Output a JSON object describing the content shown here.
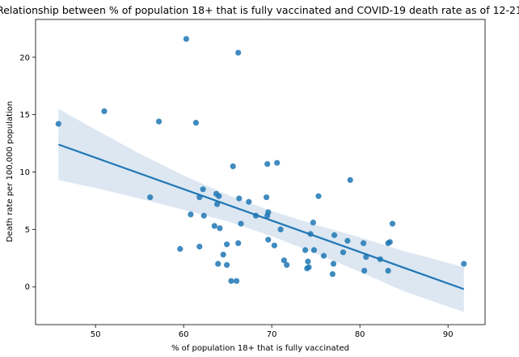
{
  "chart_data": {
    "type": "scatter",
    "title": "Relationship between % of population 18+ that is fully vaccinated and COVID-19 death rate as of 12-21",
    "xlabel": "% of population 18+ that is fully vaccinated",
    "ylabel": "Death rate per 100,000 population",
    "xlim": [
      43.2,
      94.2
    ],
    "ylim": [
      -3.3,
      23.3
    ],
    "xticks": [
      50,
      60,
      70,
      80,
      90
    ],
    "yticks": [
      0,
      5,
      10,
      15,
      20
    ],
    "grid": false,
    "points": [
      {
        "x": 45.8,
        "y": 14.2
      },
      {
        "x": 51.0,
        "y": 15.3
      },
      {
        "x": 57.2,
        "y": 14.4
      },
      {
        "x": 60.3,
        "y": 21.6
      },
      {
        "x": 61.4,
        "y": 14.3
      },
      {
        "x": 66.2,
        "y": 20.4
      },
      {
        "x": 56.2,
        "y": 7.8
      },
      {
        "x": 59.6,
        "y": 3.3
      },
      {
        "x": 60.8,
        "y": 6.3
      },
      {
        "x": 61.8,
        "y": 3.5
      },
      {
        "x": 61.8,
        "y": 7.8
      },
      {
        "x": 62.2,
        "y": 8.5
      },
      {
        "x": 62.3,
        "y": 6.2
      },
      {
        "x": 63.5,
        "y": 5.3
      },
      {
        "x": 63.7,
        "y": 8.1
      },
      {
        "x": 63.8,
        "y": 7.2
      },
      {
        "x": 63.9,
        "y": 2.0
      },
      {
        "x": 64.0,
        "y": 7.9
      },
      {
        "x": 64.1,
        "y": 5.1
      },
      {
        "x": 64.5,
        "y": 2.8
      },
      {
        "x": 64.9,
        "y": 3.7
      },
      {
        "x": 64.9,
        "y": 1.9
      },
      {
        "x": 65.4,
        "y": 0.5
      },
      {
        "x": 65.6,
        "y": 10.5
      },
      {
        "x": 66.0,
        "y": 0.5
      },
      {
        "x": 66.2,
        "y": 3.8
      },
      {
        "x": 66.3,
        "y": 7.7
      },
      {
        "x": 66.5,
        "y": 5.5
      },
      {
        "x": 67.4,
        "y": 7.4
      },
      {
        "x": 68.2,
        "y": 6.2
      },
      {
        "x": 69.4,
        "y": 7.8
      },
      {
        "x": 69.5,
        "y": 10.7
      },
      {
        "x": 69.5,
        "y": 6.2
      },
      {
        "x": 69.6,
        "y": 6.5
      },
      {
        "x": 69.6,
        "y": 4.1
      },
      {
        "x": 70.3,
        "y": 3.6
      },
      {
        "x": 70.6,
        "y": 10.8
      },
      {
        "x": 71.0,
        "y": 5.0
      },
      {
        "x": 71.4,
        "y": 2.3
      },
      {
        "x": 71.7,
        "y": 1.9
      },
      {
        "x": 73.8,
        "y": 3.2
      },
      {
        "x": 74.0,
        "y": 1.6
      },
      {
        "x": 74.1,
        "y": 2.2
      },
      {
        "x": 74.2,
        "y": 1.7
      },
      {
        "x": 74.4,
        "y": 4.6
      },
      {
        "x": 74.7,
        "y": 5.6
      },
      {
        "x": 74.8,
        "y": 3.2
      },
      {
        "x": 75.3,
        "y": 7.9
      },
      {
        "x": 75.9,
        "y": 2.7
      },
      {
        "x": 76.9,
        "y": 1.1
      },
      {
        "x": 77.0,
        "y": 2.0
      },
      {
        "x": 77.1,
        "y": 4.5
      },
      {
        "x": 78.1,
        "y": 3.0
      },
      {
        "x": 78.6,
        "y": 4.0
      },
      {
        "x": 78.9,
        "y": 9.3
      },
      {
        "x": 80.4,
        "y": 3.8
      },
      {
        "x": 80.5,
        "y": 1.4
      },
      {
        "x": 80.7,
        "y": 2.6
      },
      {
        "x": 82.3,
        "y": 2.4
      },
      {
        "x": 83.2,
        "y": 3.8
      },
      {
        "x": 83.2,
        "y": 1.4
      },
      {
        "x": 83.4,
        "y": 3.9
      },
      {
        "x": 83.7,
        "y": 5.5
      },
      {
        "x": 91.8,
        "y": 2.0
      }
    ],
    "regression": {
      "x": [
        45.8,
        91.8
      ],
      "y": [
        12.4,
        -0.2
      ]
    },
    "confidence_band": {
      "x": [
        45.8,
        50,
        55,
        60,
        65,
        70,
        75,
        80,
        85,
        88,
        91.8
      ],
      "upper": [
        15.5,
        13.7,
        11.6,
        9.7,
        8.0,
        6.6,
        5.4,
        4.3,
        3.1,
        2.5,
        1.7
      ],
      "lower": [
        9.3,
        8.6,
        7.7,
        6.7,
        5.7,
        4.4,
        2.9,
        1.3,
        -0.4,
        -1.2,
        -2.2
      ]
    },
    "colors": {
      "point": "#1f77b4",
      "line": "#1f77b4",
      "band": "#dce7f2",
      "axes": "#000000",
      "background": "#ffffff"
    }
  }
}
